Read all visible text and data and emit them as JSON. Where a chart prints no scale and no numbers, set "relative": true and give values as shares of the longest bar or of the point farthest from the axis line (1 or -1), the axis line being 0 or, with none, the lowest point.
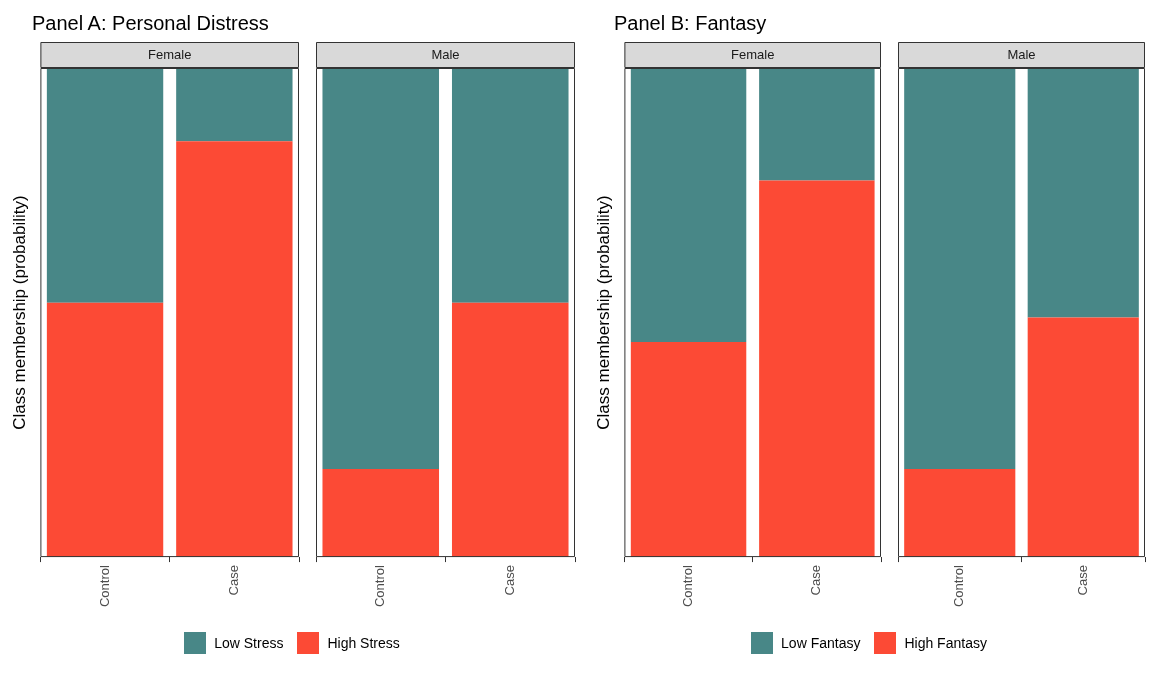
{
  "chart_data": [
    {
      "type": "bar",
      "title": "Panel A: Personal Distress",
      "subtitle": "Female",
      "ylabel": "Class membership (probability)",
      "categories": [
        "Control",
        "Case"
      ],
      "stacked": true,
      "relative": true,
      "legend": "bottom",
      "series": [
        {
          "name": "High Stress",
          "color": "#fc4a35",
          "values": [
            0.52,
            0.85
          ]
        },
        {
          "name": "Low Stress",
          "color": "#488787",
          "values": [
            0.48,
            0.15
          ]
        }
      ]
    },
    {
      "type": "bar",
      "subtitle": "Male",
      "categories": [
        "Control",
        "Case"
      ],
      "stacked": true,
      "relative": true,
      "series": [
        {
          "color": "#fc4a35",
          "values": [
            0.18,
            0.52
          ]
        },
        {
          "color": "#488787",
          "values": [
            0.82,
            0.48
          ]
        }
      ]
    },
    {
      "type": "bar",
      "title": "Panel B: Fantasy",
      "subtitle": "Female",
      "ylabel": "Class membership (probability)",
      "categories": [
        "Control",
        "Case"
      ],
      "stacked": true,
      "relative": true,
      "legend": "bottom",
      "series": [
        {
          "name": "High Fantasy",
          "color": "#fc4a35",
          "values": [
            0.44,
            0.77
          ]
        },
        {
          "name": "Low Fantasy",
          "color": "#488787",
          "values": [
            0.56,
            0.23
          ]
        }
      ]
    },
    {
      "type": "bar",
      "subtitle": "Male",
      "categories": [
        "Control",
        "Case"
      ],
      "stacked": true,
      "relative": true,
      "series": [
        {
          "color": "#fc4a35",
          "values": [
            0.18,
            0.49
          ]
        },
        {
          "color": "#488787",
          "values": [
            0.82,
            0.51
          ]
        }
      ]
    }
  ]
}
